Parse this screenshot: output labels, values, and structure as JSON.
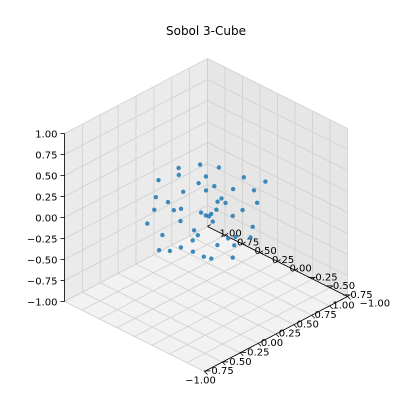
{
  "chart_data": {
    "type": "scatter",
    "projection": "3d",
    "title": "Sobol 3-Cube",
    "xlabel": "",
    "ylabel": "",
    "zlabel": "",
    "xlim": [
      -1.0,
      1.0
    ],
    "ylim": [
      -1.0,
      1.0
    ],
    "zlim": [
      -1.0,
      1.0
    ],
    "x_ticks": [
      "−1.00",
      "−0.75",
      "−0.50",
      "−0.25",
      "0.00",
      "0.25",
      "0.50",
      "0.75",
      "1.00"
    ],
    "y_ticks": [
      "−1.00",
      "−0.75",
      "−0.50",
      "−0.25",
      "0.00",
      "0.25",
      "0.50",
      "0.75",
      "1.00"
    ],
    "z_ticks": [
      "−1.00",
      "−0.75",
      "−0.50",
      "−0.25",
      "0.00",
      "0.25",
      "0.50",
      "0.75",
      "1.00"
    ],
    "grid": true,
    "point_color": "#1f77b4",
    "points": [
      [
        -0.42,
        0.31,
        0.12
      ],
      [
        0.18,
        -0.22,
        -0.35
      ],
      [
        0.05,
        0.44,
        0.27
      ],
      [
        -0.21,
        -0.38,
        0.41
      ],
      [
        0.39,
        0.12,
        -0.08
      ],
      [
        -0.08,
        -0.05,
        -0.44
      ],
      [
        0.27,
        0.36,
        0.33
      ],
      [
        -0.35,
        -0.17,
        -0.21
      ],
      [
        0.11,
        -0.41,
        0.18
      ],
      [
        -0.29,
        0.22,
        -0.39
      ],
      [
        0.44,
        -0.09,
        0.29
      ],
      [
        -0.14,
        0.4,
        0.05
      ],
      [
        0.21,
        0.03,
        0.46
      ],
      [
        -0.46,
        -0.28,
        0.02
      ],
      [
        0.02,
        0.19,
        -0.27
      ],
      [
        0.33,
        -0.33,
        -0.15
      ],
      [
        -0.24,
        0.08,
        0.35
      ],
      [
        0.15,
        0.27,
        -0.42
      ],
      [
        -0.03,
        -0.45,
        -0.06
      ],
      [
        0.41,
        0.42,
        0.1
      ],
      [
        -0.38,
        0.45,
        -0.12
      ],
      [
        0.08,
        -0.14,
        0.22
      ],
      [
        -0.18,
        -0.26,
        -0.33
      ],
      [
        0.3,
        0.21,
        -0.3
      ],
      [
        -0.05,
        0.34,
        0.44
      ],
      [
        0.24,
        -0.44,
        0.37
      ],
      [
        -0.44,
        0.01,
        0.25
      ],
      [
        0.36,
        0.05,
        -0.46
      ],
      [
        -0.11,
        -0.11,
        0.09
      ],
      [
        0.12,
        0.48,
        -0.18
      ],
      [
        -0.31,
        -0.48,
        -0.02
      ],
      [
        0.47,
        -0.25,
        0.04
      ],
      [
        -0.2,
        0.16,
        -0.05
      ],
      [
        0.06,
        -0.32,
        -0.4
      ],
      [
        -0.4,
        0.27,
        0.48
      ],
      [
        0.2,
        0.31,
        0.16
      ],
      [
        -0.02,
        -0.02,
        0.31
      ],
      [
        0.32,
        -0.06,
        0.19
      ],
      [
        -0.27,
        -0.35,
        0.28
      ],
      [
        0.14,
        0.1,
        -0.12
      ],
      [
        -0.48,
        0.18,
        -0.28
      ],
      [
        0.43,
        0.29,
        -0.25
      ],
      [
        -0.09,
        -0.21,
        0.47
      ],
      [
        0.26,
        -0.37,
        -0.23
      ],
      [
        -0.34,
        0.37,
        0.21
      ],
      [
        0.0,
        0.07,
        0.0
      ],
      [
        0.38,
        -0.46,
        0.42
      ],
      [
        -0.16,
        0.46,
        -0.36
      ],
      [
        0.09,
        -0.29,
        0.07
      ],
      [
        -0.43,
        -0.08,
        -0.16
      ]
    ]
  }
}
